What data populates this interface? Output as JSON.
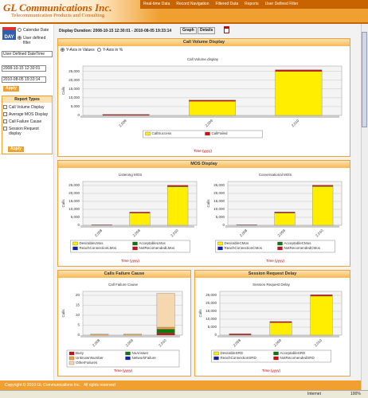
{
  "header": {
    "logo": "GL Communications Inc.",
    "tagline": "Telecommunication Products and Consulting",
    "nav": [
      "Real-time Data",
      "Record Navigation",
      "Filtered Data",
      "Reports",
      "User Defined Filter"
    ]
  },
  "sidebar": {
    "icon_text": "DAY",
    "date_options": [
      "Calendar Date",
      "User defined filter"
    ],
    "select": "User Defined DateTime",
    "start": "2008-10-15 12:30:01",
    "end": "2010-08-05 19:33:14",
    "apply": "Apply",
    "report_types_title": "Report Types",
    "report_types": [
      "Call Volume Display",
      "Average MOS Display",
      "Call Failure Cause",
      "Session Request display"
    ],
    "apply2": "Apply"
  },
  "toolbar": {
    "duration": "Display Duration: 2008-10-15 12:30:01 - 2010-08-05 19:33:14",
    "buttons": [
      "Graph",
      "Details"
    ]
  },
  "panels": [
    {
      "title": "Call Volume Display",
      "options": [
        "Y-Axis in Values",
        "Y-Axis in %"
      ],
      "charts": [
        {
          "type": "bar",
          "stacked": true,
          "title": "Call Volume display",
          "x_label": "Time (yyyy)",
          "y_label": "Calls",
          "categories": [
            "2,008",
            "2,009",
            "2,010"
          ],
          "ylim": [
            0,
            28000
          ],
          "yticks": [
            0,
            {
              "value": 5000,
              "label": "5,000"
            },
            {
              "value": 10000,
              "label": "10,000"
            },
            {
              "value": 15000,
              "label": "15,000"
            },
            {
              "value": 20000,
              "label": "20,000"
            },
            {
              "value": 25000,
              "label": "25,000"
            }
          ],
          "grid": true,
          "series": [
            {
              "name": "CallSuccess",
              "color": "#ffee00",
              "values": [
                100,
                8000,
                25000
              ]
            },
            {
              "name": "CallFailed",
              "color": "#cc1111",
              "values": [
                500,
                700,
                900
              ]
            }
          ]
        }
      ]
    },
    {
      "title": "MOS Display",
      "charts": [
        {
          "type": "bar",
          "stacked": true,
          "title": "Listening MOS",
          "x_label": "Time (yyyy)",
          "y_label": "Calls",
          "categories": [
            "2,008",
            "2,009",
            "2,010"
          ],
          "ylim": [
            0,
            27500
          ],
          "yticks": [
            0,
            {
              "value": 5000,
              "label": "5,000"
            },
            {
              "value": 10000,
              "label": "10,000"
            },
            {
              "value": 15000,
              "label": "15,000"
            },
            {
              "value": 20000,
              "label": "20,000"
            },
            {
              "value": 25000,
              "label": "25,000"
            }
          ],
          "grid": true,
          "series": [
            {
              "name": "DesirableLMos",
              "color": "#ffee00",
              "values": [
                100,
                7600,
                24200
              ]
            },
            {
              "name": "AcceptableLMos",
              "color": "#117711",
              "values": [
                0,
                100,
                200
              ]
            },
            {
              "name": "ReachConnectionLMos",
              "color": "#1122aa",
              "values": [
                0,
                0,
                0
              ]
            },
            {
              "name": "NotRecomendedLMos",
              "color": "#cc1111",
              "values": [
                200,
                600,
                700
              ]
            }
          ]
        },
        {
          "type": "bar",
          "stacked": true,
          "title": "Conversational MOS",
          "x_label": "Time (yyyy)",
          "y_label": "Calls",
          "categories": [
            "2,008",
            "2,009",
            "2,010"
          ],
          "ylim": [
            0,
            27500
          ],
          "yticks": [
            0,
            {
              "value": 5000,
              "label": "5,000"
            },
            {
              "value": 10000,
              "label": "10,000"
            },
            {
              "value": 15000,
              "label": "15,000"
            },
            {
              "value": 20000,
              "label": "20,000"
            },
            {
              "value": 25000,
              "label": "25,000"
            }
          ],
          "grid": true,
          "series": [
            {
              "name": "DesirableCMos",
              "color": "#ffee00",
              "values": [
                100,
                7700,
                24300
              ]
            },
            {
              "name": "AcceptableCMos",
              "color": "#117711",
              "values": [
                0,
                100,
                200
              ]
            },
            {
              "name": "ReachConnectionCMos",
              "color": "#1122aa",
              "values": [
                0,
                0,
                0
              ]
            },
            {
              "name": "NotRecomendedCMos",
              "color": "#cc1111",
              "values": [
                200,
                600,
                700
              ]
            }
          ]
        }
      ]
    },
    {
      "title": "Calls Failure Cause",
      "charts": [
        {
          "type": "bar",
          "stacked": true,
          "title": "Call Failure Cause",
          "x_label": "Time (yyyy)",
          "y_label": "Calls",
          "categories": [
            "2,008",
            "2,009",
            "2,010"
          ],
          "ylim": [
            0,
            22
          ],
          "yticks": [
            0,
            5,
            10,
            15,
            20
          ],
          "grid": true,
          "series": [
            {
              "name": "Busy",
              "color": "#cc1111",
              "values": [
                0,
                0,
                1
              ]
            },
            {
              "name": "NoAnswer",
              "color": "#117711",
              "values": [
                0,
                0,
                2
              ]
            },
            {
              "name": "UnknownNumber",
              "color": "#f7a040",
              "values": [
                0.5,
                0.5,
                1
              ]
            },
            {
              "name": "NetworkFailure",
              "color": "#1122aa",
              "values": [
                0,
                0,
                0
              ]
            },
            {
              "name": "OtherFailures",
              "color": "#f5d7b0",
              "values": [
                0,
                0,
                17
              ]
            }
          ]
        }
      ]
    },
    {
      "title": "Session Request Delay",
      "charts": [
        {
          "type": "bar",
          "stacked": true,
          "title": "Session Request Delay",
          "x_label": "Time (yyyy)",
          "y_label": "Calls",
          "categories": [
            "2,008",
            "2,009",
            "2,010"
          ],
          "ylim": [
            0,
            27500
          ],
          "yticks": [
            0,
            {
              "value": 5000,
              "label": "5,000"
            },
            {
              "value": 10000,
              "label": "10,000"
            },
            {
              "value": 15000,
              "label": "15,000"
            },
            {
              "value": 20000,
              "label": "20,000"
            },
            {
              "value": 25000,
              "label": "25,000"
            }
          ],
          "grid": true,
          "series": [
            {
              "name": "DesirableSRD",
              "color": "#ffee00",
              "values": [
                100,
                7800,
                24500
              ]
            },
            {
              "name": "AcceptableSRD",
              "color": "#117711",
              "values": [
                0,
                50,
                100
              ]
            },
            {
              "name": "ReachConnectionSRD",
              "color": "#1122aa",
              "values": [
                0,
                0,
                0
              ]
            },
            {
              "name": "NotRecomendedSRD",
              "color": "#cc1111",
              "values": [
                700,
                700,
                800
              ]
            }
          ]
        }
      ]
    }
  ],
  "footer": {
    "copyright": "Copyright © 2010 GL Communications Inc.   All rights reserved"
  },
  "status": {
    "zone": "Internet",
    "zoom": "100%"
  }
}
